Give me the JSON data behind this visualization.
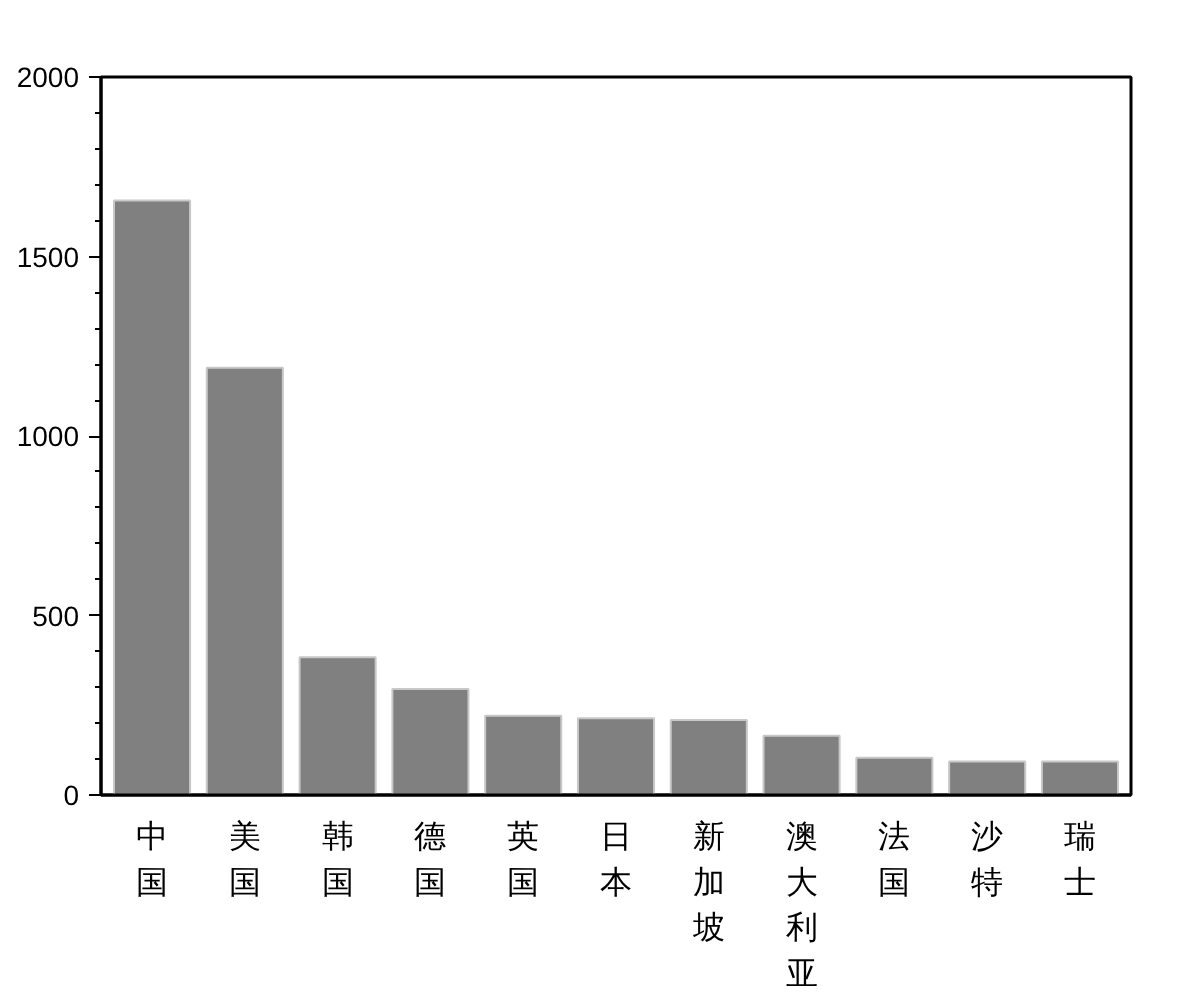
{
  "chart_data": {
    "type": "bar",
    "categories": [
      "中国",
      "美国",
      "韩国",
      "德国",
      "英国",
      "日本",
      "新加坡",
      "澳大利亚",
      "法国",
      "沙特",
      "瑞士"
    ],
    "values": [
      1656,
      1190,
      384,
      295,
      221,
      214,
      209,
      165,
      104,
      93,
      93
    ],
    "color": "#808080",
    "ylim": [
      0,
      2000
    ],
    "yticks": [
      0,
      500,
      1000,
      1500,
      2000
    ],
    "grid": false
  }
}
